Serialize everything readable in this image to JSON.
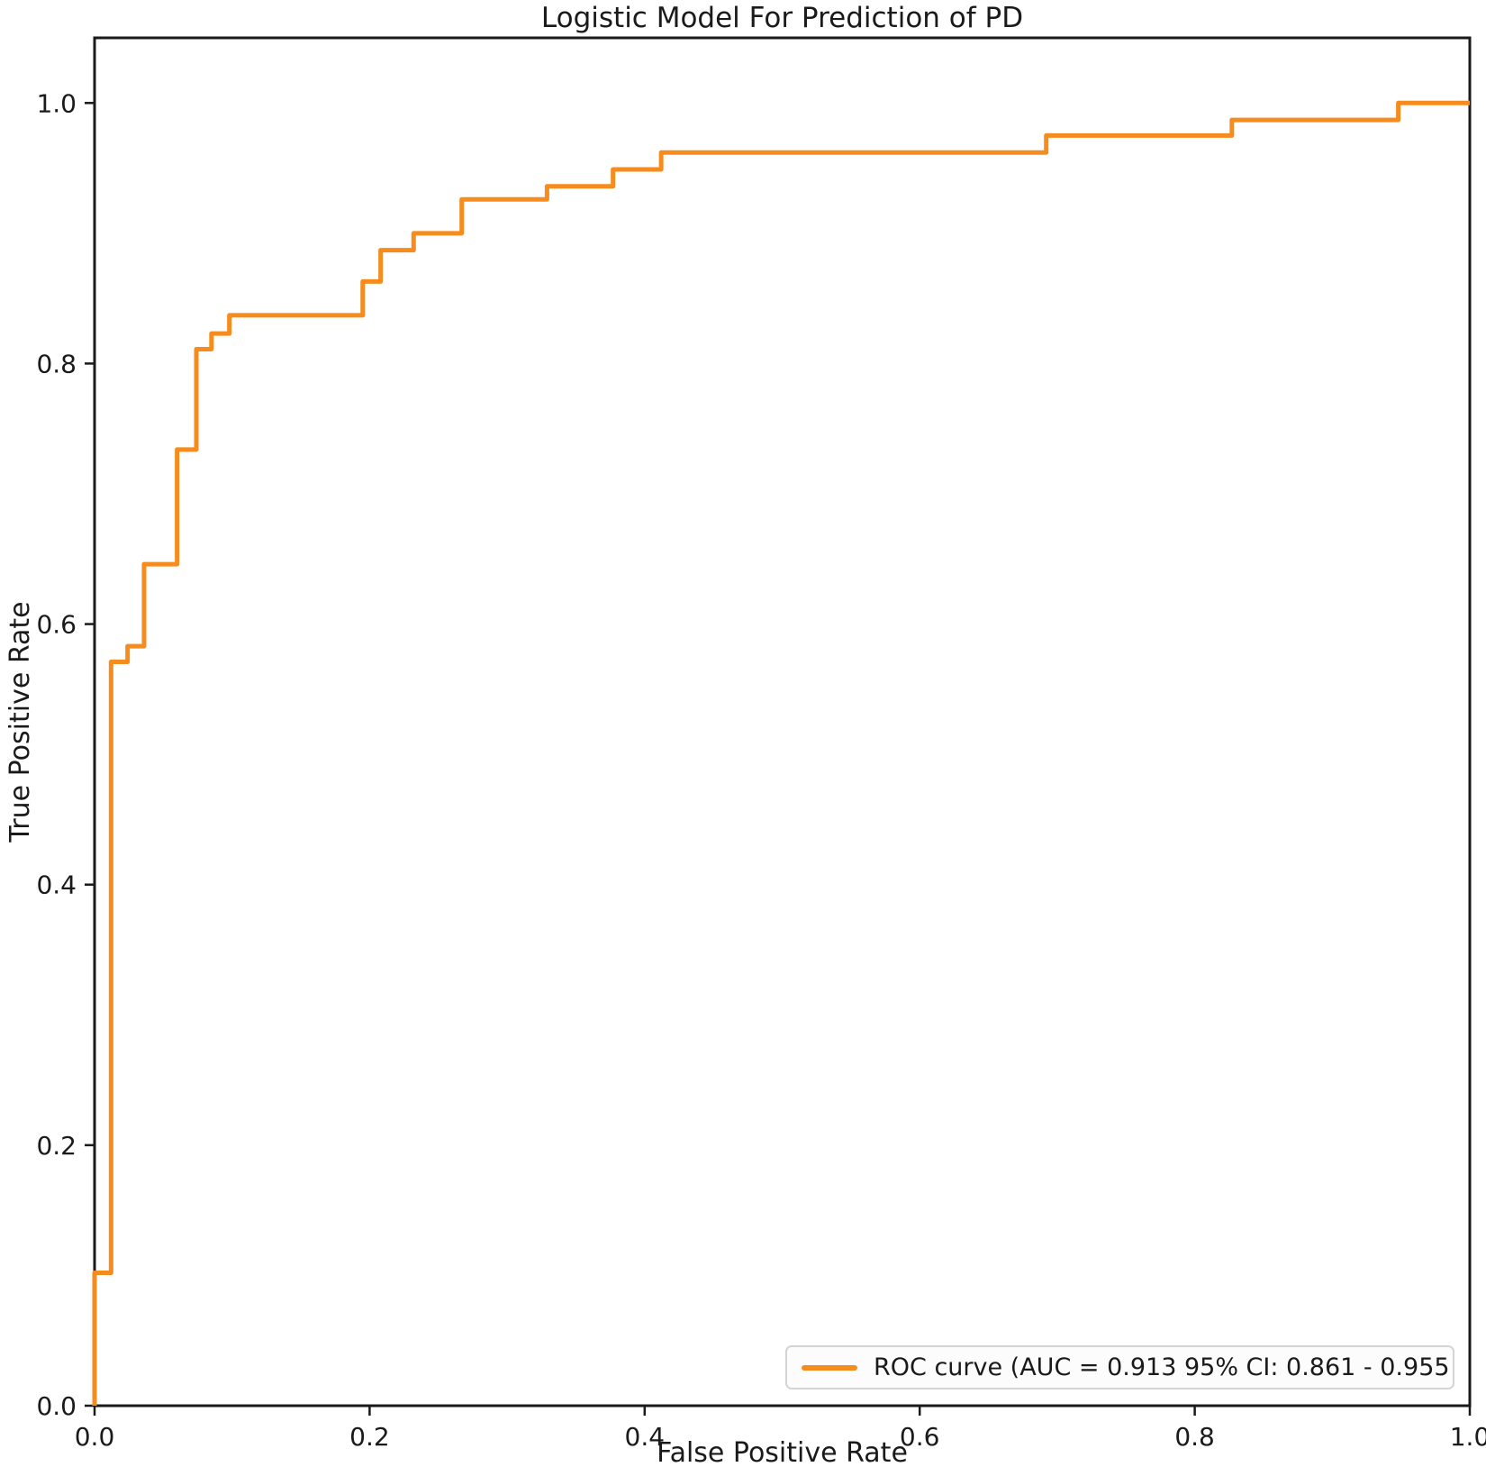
{
  "figure": {
    "title": "Logistic Model For Prediction of PD",
    "x_axis_label": "False Positive Rate",
    "y_axis_label": "True Positive Rate"
  },
  "legend": {
    "label": "ROC curve (AUC = 0.913 95% CI: 0.861 - 0.955",
    "position": "lower right"
  },
  "colors": {
    "curve": "#f78c1e",
    "axis": "#1a1a1a",
    "background": "#ffffff",
    "legend_border": "#d4d4d4",
    "legend_background": "#fcfcfc"
  },
  "chart_data": {
    "type": "line",
    "subtype": "roc_step_curve",
    "title": "Logistic Model For Prediction of PD",
    "xlabel": "False Positive Rate",
    "ylabel": "True Positive Rate",
    "xlim": [
      0.0,
      1.0
    ],
    "ylim": [
      0.0,
      1.05
    ],
    "x_ticks": [
      0.0,
      0.2,
      0.4,
      0.6,
      0.8,
      1.0
    ],
    "y_ticks": [
      0.0,
      0.2,
      0.4,
      0.6,
      0.8,
      1.0
    ],
    "tick_decimals": 1,
    "grid": false,
    "legend_position": "lower right",
    "series": [
      {
        "name": "ROC curve (AUC = 0.913 95% CI: 0.861 - 0.955",
        "color": "#f78c1e",
        "auc": 0.913,
        "ci_95_low": 0.861,
        "ci_95_high": 0.955,
        "points_fpr_tpr": [
          [
            0.0,
            0.0
          ],
          [
            0.0,
            0.102
          ],
          [
            0.012,
            0.102
          ],
          [
            0.012,
            0.571
          ],
          [
            0.024,
            0.571
          ],
          [
            0.024,
            0.583
          ],
          [
            0.036,
            0.583
          ],
          [
            0.036,
            0.646
          ],
          [
            0.06,
            0.646
          ],
          [
            0.06,
            0.734
          ],
          [
            0.074,
            0.734
          ],
          [
            0.074,
            0.811
          ],
          [
            0.085,
            0.811
          ],
          [
            0.085,
            0.823
          ],
          [
            0.098,
            0.823
          ],
          [
            0.098,
            0.837
          ],
          [
            0.195,
            0.837
          ],
          [
            0.195,
            0.863
          ],
          [
            0.208,
            0.863
          ],
          [
            0.208,
            0.887
          ],
          [
            0.232,
            0.887
          ],
          [
            0.232,
            0.9
          ],
          [
            0.267,
            0.9
          ],
          [
            0.267,
            0.926
          ],
          [
            0.329,
            0.926
          ],
          [
            0.329,
            0.936
          ],
          [
            0.377,
            0.936
          ],
          [
            0.377,
            0.949
          ],
          [
            0.412,
            0.949
          ],
          [
            0.412,
            0.962
          ],
          [
            0.692,
            0.962
          ],
          [
            0.692,
            0.975
          ],
          [
            0.827,
            0.975
          ],
          [
            0.827,
            0.987
          ],
          [
            0.948,
            0.987
          ],
          [
            0.948,
            1.0
          ],
          [
            1.0,
            1.0
          ]
        ]
      }
    ]
  }
}
